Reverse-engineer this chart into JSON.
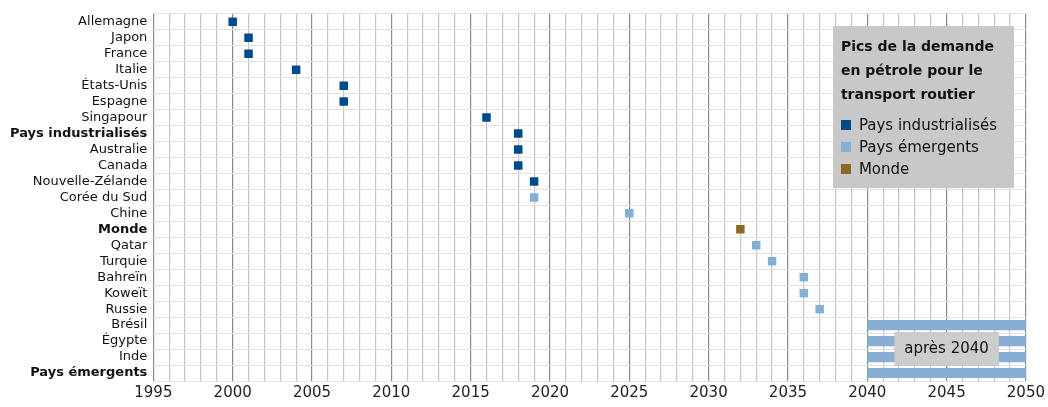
{
  "chart_data": {
    "type": "scatter",
    "orientation": "horizontal",
    "legend_title": "Pics de la demande en pétrole pour le transport routier",
    "legend": "top right",
    "grid": true,
    "marker": "square",
    "categories": [
      "Allemagne",
      "Japon",
      "France",
      "Italie",
      "États-Unis",
      "Espagne",
      "Singapour",
      "Pays industrialisés",
      "Australie",
      "Canada",
      "Nouvelle-Zélande",
      "Corée du Sud",
      "Chine",
      "Monde",
      "Qatar",
      "Turquie",
      "Bahreïn",
      "Koweït",
      "Russie",
      "Brésil",
      "Égypte",
      "Inde",
      "Pays émergents"
    ],
    "xlim": [
      1995,
      2050
    ],
    "xticks": [
      1995,
      {
        "value": 1996,
        "label": null
      },
      {
        "value": 1997,
        "label": null
      },
      {
        "value": 1998,
        "label": null
      },
      {
        "value": 1999,
        "label": null
      },
      2000,
      {
        "value": 2001,
        "label": null
      },
      {
        "value": 2002,
        "label": null
      },
      {
        "value": 2003,
        "label": null
      },
      {
        "value": 2004,
        "label": null
      },
      2005,
      {
        "value": 2006,
        "label": null
      },
      {
        "value": 2007,
        "label": null
      },
      {
        "value": 2008,
        "label": null
      },
      {
        "value": 2009,
        "label": null
      },
      2010,
      {
        "value": 2011,
        "label": null
      },
      {
        "value": 2012,
        "label": null
      },
      {
        "value": 2013,
        "label": null
      },
      {
        "value": 2014,
        "label": null
      },
      2015,
      {
        "value": 2016,
        "label": null
      },
      {
        "value": 2017,
        "label": null
      },
      {
        "value": 2018,
        "label": null
      },
      {
        "value": 2019,
        "label": null
      },
      2020,
      {
        "value": 2021,
        "label": null
      },
      {
        "value": 2022,
        "label": null
      },
      {
        "value": 2023,
        "label": null
      },
      {
        "value": 2024,
        "label": null
      },
      2025,
      {
        "value": 2026,
        "label": null
      },
      {
        "value": 2027,
        "label": null
      },
      {
        "value": 2028,
        "label": null
      },
      {
        "value": 2029,
        "label": null
      },
      2030,
      {
        "value": 2031,
        "label": null
      },
      {
        "value": 2032,
        "label": null
      },
      {
        "value": 2033,
        "label": null
      },
      {
        "value": 2034,
        "label": null
      },
      2035,
      {
        "value": 2036,
        "label": null
      },
      {
        "value": 2037,
        "label": null
      },
      {
        "value": 2038,
        "label": null
      },
      {
        "value": 2039,
        "label": null
      },
      2040,
      {
        "value": 2041,
        "label": null
      },
      {
        "value": 2042,
        "label": null
      },
      {
        "value": 2043,
        "label": null
      },
      {
        "value": 2044,
        "label": null
      },
      2045,
      {
        "value": 2046,
        "label": null
      },
      {
        "value": 2047,
        "label": null
      },
      {
        "value": 2048,
        "label": null
      },
      {
        "value": 2049,
        "label": null
      },
      2050
    ],
    "series": [
      {
        "name": "Pays industrialisés",
        "color": "#004a8a",
        "values": [
          2000,
          2001,
          2001,
          2004,
          2007,
          2007,
          2016,
          2018,
          2018,
          2018,
          2019,
          null,
          null,
          null,
          null,
          null,
          null,
          null,
          null,
          null,
          null,
          null,
          null
        ]
      },
      {
        "name": "Pays émergents",
        "color": "#87aed4",
        "values": [
          null,
          null,
          null,
          null,
          null,
          null,
          null,
          null,
          null,
          null,
          null,
          2019,
          2025,
          null,
          2033,
          2034,
          2036,
          2036,
          2037,
          null,
          null,
          null,
          null
        ]
      },
      {
        "name": "Monde",
        "color": "#8a6a25",
        "values": [
          null,
          null,
          null,
          null,
          null,
          null,
          null,
          null,
          null,
          null,
          null,
          null,
          null,
          2032,
          null,
          null,
          null,
          null,
          null,
          null,
          null,
          null,
          null
        ]
      },
      {
        "type": "bar",
        "color": "#87aed4",
        "base": [
          null,
          null,
          null,
          null,
          null,
          null,
          null,
          null,
          null,
          null,
          null,
          null,
          null,
          null,
          null,
          null,
          null,
          null,
          null,
          2040,
          2040,
          2040,
          2040
        ],
        "values": [
          null,
          null,
          null,
          null,
          null,
          null,
          null,
          null,
          null,
          null,
          null,
          null,
          null,
          null,
          null,
          null,
          null,
          null,
          null,
          10,
          10,
          10,
          10
        ]
      }
    ],
    "annotations": [
      {
        "text": "après 2040",
        "x": 2045,
        "y": "Inde"
      }
    ]
  }
}
